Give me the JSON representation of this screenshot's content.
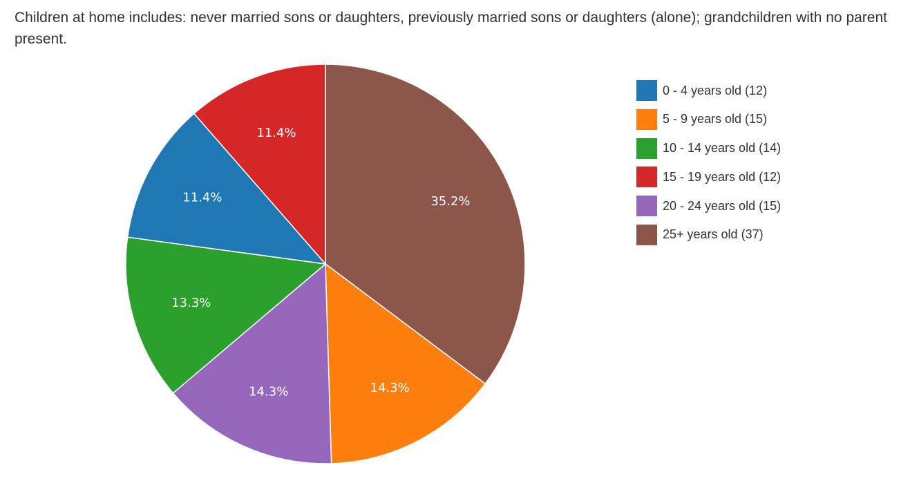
{
  "caption": "Children at home includes: never married sons or daughters, previously married sons or daughters (alone); grandchildren with no parent present.",
  "chart_data": {
    "type": "pie",
    "title": "",
    "start_angle_deg": 0,
    "direction": "clockwise",
    "legend_position": "right",
    "slices": [
      {
        "legend": "25+ years old (37)",
        "value": 37,
        "percent_label": "35.2%",
        "color": "#8c564b"
      },
      {
        "legend": "5 - 9 years old (15)",
        "value": 15,
        "percent_label": "14.3%",
        "color": "#ff7f0e"
      },
      {
        "legend": "20 - 24 years old (15)",
        "value": 15,
        "percent_label": "14.3%",
        "color": "#9467bd"
      },
      {
        "legend": "10 - 14 years old (14)",
        "value": 14,
        "percent_label": "13.3%",
        "color": "#2ca02c"
      },
      {
        "legend": "0 - 4 years old (12)",
        "value": 12,
        "percent_label": "11.4%",
        "color": "#1f77b4"
      },
      {
        "legend": "15 - 19 years old (12)",
        "value": 12,
        "percent_label": "11.4%",
        "color": "#d62728"
      }
    ],
    "legend_order": [
      {
        "label": "0 - 4 years old (12)",
        "color": "#1f77b4"
      },
      {
        "label": "5 - 9 years old (15)",
        "color": "#ff7f0e"
      },
      {
        "label": "10 - 14 years old (14)",
        "color": "#2ca02c"
      },
      {
        "label": "15 - 19 years old (12)",
        "color": "#d62728"
      },
      {
        "label": "20 - 24 years old (15)",
        "color": "#9467bd"
      },
      {
        "label": "25+ years old (37)",
        "color": "#8c564b"
      }
    ]
  }
}
